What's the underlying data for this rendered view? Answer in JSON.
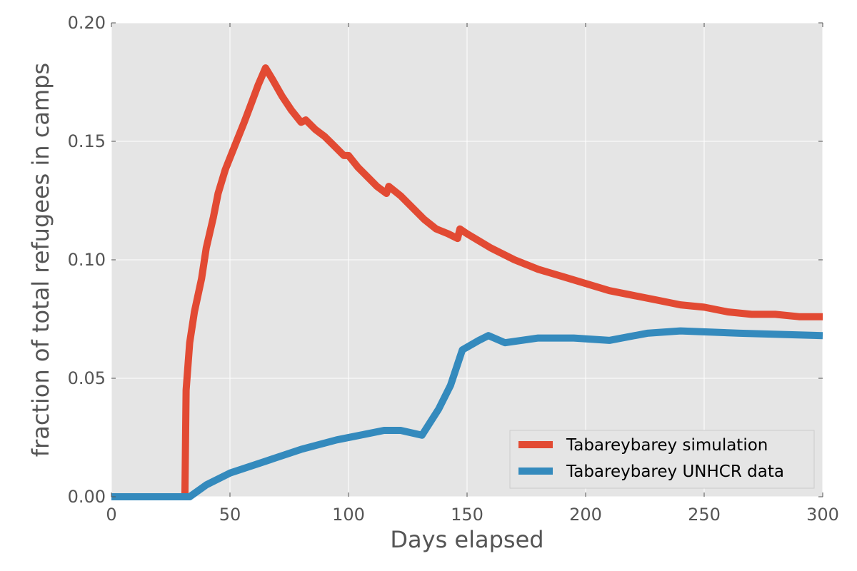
{
  "chart_data": {
    "type": "line",
    "title": "",
    "xlabel": "Days elapsed",
    "ylabel": "fraction of total refugees in camps",
    "xlim": [
      0,
      300
    ],
    "ylim": [
      0,
      0.2
    ],
    "xticks": [
      0,
      50,
      100,
      150,
      200,
      250,
      300
    ],
    "xtick_labels": [
      "0",
      "50",
      "100",
      "150",
      "200",
      "250",
      "300"
    ],
    "yticks": [
      0,
      0.05,
      0.1,
      0.15,
      0.2
    ],
    "ytick_labels": [
      "0.00",
      "0.05",
      "0.10",
      "0.15",
      "0.20"
    ],
    "grid": true,
    "legend_position": "lower-right",
    "series": [
      {
        "name": "Tabareybarey simulation",
        "color": "#E24A33",
        "points": [
          [
            0,
            0
          ],
          [
            31,
            0
          ],
          [
            31.5,
            0.045
          ],
          [
            33,
            0.065
          ],
          [
            35,
            0.078
          ],
          [
            38,
            0.092
          ],
          [
            40,
            0.105
          ],
          [
            43,
            0.118
          ],
          [
            45,
            0.128
          ],
          [
            48,
            0.138
          ],
          [
            52,
            0.148
          ],
          [
            56,
            0.158
          ],
          [
            59,
            0.166
          ],
          [
            62,
            0.174
          ],
          [
            65,
            0.181
          ],
          [
            68,
            0.176
          ],
          [
            72,
            0.169
          ],
          [
            76,
            0.163
          ],
          [
            80,
            0.158
          ],
          [
            82,
            0.159
          ],
          [
            86,
            0.155
          ],
          [
            90,
            0.152
          ],
          [
            94,
            0.148
          ],
          [
            98,
            0.144
          ],
          [
            100,
            0.144
          ],
          [
            104,
            0.139
          ],
          [
            108,
            0.135
          ],
          [
            112,
            0.131
          ],
          [
            116,
            0.128
          ],
          [
            117,
            0.131
          ],
          [
            122,
            0.127
          ],
          [
            127,
            0.122
          ],
          [
            132,
            0.117
          ],
          [
            137,
            0.113
          ],
          [
            142,
            0.111
          ],
          [
            146,
            0.109
          ],
          [
            147,
            0.113
          ],
          [
            150,
            0.111
          ],
          [
            155,
            0.108
          ],
          [
            160,
            0.105
          ],
          [
            170,
            0.1
          ],
          [
            180,
            0.096
          ],
          [
            190,
            0.093
          ],
          [
            200,
            0.09
          ],
          [
            210,
            0.087
          ],
          [
            220,
            0.085
          ],
          [
            230,
            0.083
          ],
          [
            240,
            0.081
          ],
          [
            250,
            0.08
          ],
          [
            260,
            0.078
          ],
          [
            270,
            0.077
          ],
          [
            280,
            0.077
          ],
          [
            290,
            0.076
          ],
          [
            300,
            0.076
          ]
        ]
      },
      {
        "name": "Tabareybarey UNHCR data",
        "color": "#348ABD",
        "points": [
          [
            0,
            0
          ],
          [
            33,
            0
          ],
          [
            40,
            0.005
          ],
          [
            50,
            0.01
          ],
          [
            65,
            0.015
          ],
          [
            80,
            0.02
          ],
          [
            95,
            0.024
          ],
          [
            105,
            0.026
          ],
          [
            115,
            0.028
          ],
          [
            122,
            0.028
          ],
          [
            131,
            0.026
          ],
          [
            138,
            0.037
          ],
          [
            143,
            0.047
          ],
          [
            148,
            0.062
          ],
          [
            155,
            0.066
          ],
          [
            159,
            0.068
          ],
          [
            166,
            0.065
          ],
          [
            180,
            0.067
          ],
          [
            195,
            0.067
          ],
          [
            210,
            0.066
          ],
          [
            226,
            0.069
          ],
          [
            240,
            0.07
          ],
          [
            265,
            0.069
          ],
          [
            300,
            0.068
          ]
        ]
      }
    ]
  }
}
